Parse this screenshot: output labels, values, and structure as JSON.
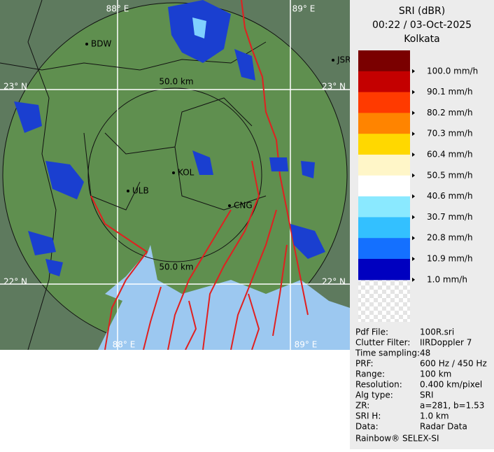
{
  "map": {
    "grid_labels": [
      "88° E",
      "89° E",
      "23° N",
      "23° N",
      "22° N",
      "22° N",
      "88° E",
      "89° E"
    ],
    "places": [
      "BDW",
      "JSR",
      "KOL",
      "ULB",
      "CNG"
    ],
    "range_labels": [
      "50.0 km",
      "50.0 km"
    ]
  },
  "legend": {
    "title": "SRI (dBR)",
    "time": "00:22 / 03-Oct-2025",
    "site": "Kolkata",
    "colors": [
      "#7a0000",
      "#c40000",
      "#ff3a00",
      "#ff8400",
      "#ffd800",
      "#fff6c8",
      "#ffffff",
      "#8ae9ff",
      "#33c0ff",
      "#1470ff",
      "#0000c0"
    ],
    "labels": [
      "100.0 mm/h",
      "90.1 mm/h",
      "80.2 mm/h",
      "70.3 mm/h",
      "60.4 mm/h",
      "50.5 mm/h",
      "40.6 mm/h",
      "30.7 mm/h",
      "20.8 mm/h",
      "10.9 mm/h",
      "1.0 mm/h"
    ]
  },
  "info": {
    "rows": [
      [
        "Pdf File:",
        "100R.sri"
      ],
      [
        "Clutter Filter:",
        "IIRDoppler 7"
      ],
      [
        "Time sampling:",
        "48"
      ],
      [
        "PRF:",
        "600 Hz / 450 Hz"
      ],
      [
        "Range:",
        "100 km"
      ],
      [
        "Resolution:",
        "0.400 km/pixel"
      ],
      [
        "Alg type:",
        "SRI"
      ],
      [
        "ZR:",
        "a=281, b=1.53"
      ],
      [
        "SRI H:",
        "1.0 km"
      ],
      [
        "Data:",
        "Radar Data"
      ]
    ],
    "footer": "Rainbow® SELEX-SI"
  }
}
